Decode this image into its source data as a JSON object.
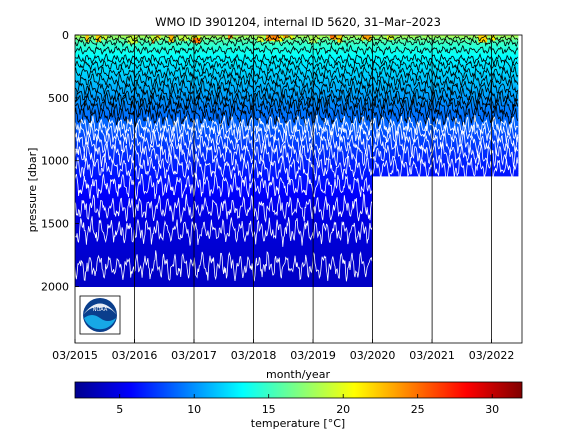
{
  "chart_data": {
    "type": "heatmap",
    "title": "WMO ID 3901204, internal ID 5620, 31–Mar–2023",
    "xlabel": "month/year",
    "ylabel": "pressure [dbar]",
    "x_ticks": [
      "03/2015",
      "03/2016",
      "03/2017",
      "03/2018",
      "03/2019",
      "03/2020",
      "03/2021",
      "03/2022"
    ],
    "x_tick_values": [
      2015.17,
      2016.17,
      2017.17,
      2018.17,
      2019.17,
      2020.17,
      2021.17,
      2022.17
    ],
    "xlim": [
      2015.17,
      2022.68
    ],
    "y_ticks": [
      0,
      500,
      1000,
      1500,
      2000
    ],
    "ylim": [
      0,
      2450
    ],
    "y_reversed": true,
    "profile_depth": [
      {
        "from": 2015.17,
        "to": 2020.17,
        "max_pressure": 2000
      },
      {
        "from": 2020.17,
        "to": 2022.62,
        "max_pressure": 1120
      }
    ],
    "temperature_isotherms": [
      {
        "temp": 17,
        "pressure": 25
      },
      {
        "temp": 15,
        "pressure": 60
      },
      {
        "temp": 14,
        "pressure": 120
      },
      {
        "temp": 13,
        "pressure": 190
      },
      {
        "temp": 12.5,
        "pressure": 240
      },
      {
        "temp": 12,
        "pressure": 300
      },
      {
        "temp": 11.5,
        "pressure": 360
      },
      {
        "temp": 11,
        "pressure": 420
      },
      {
        "temp": 10.5,
        "pressure": 480
      },
      {
        "temp": 10,
        "pressure": 530
      },
      {
        "temp": 9.5,
        "pressure": 580
      },
      {
        "temp": 9,
        "pressure": 650
      },
      {
        "temp": 8.5,
        "pressure": 720
      },
      {
        "temp": 8,
        "pressure": 780
      },
      {
        "temp": 7.5,
        "pressure": 860
      },
      {
        "temp": 7,
        "pressure": 950
      },
      {
        "temp": 6.5,
        "pressure": 1060
      },
      {
        "temp": 6,
        "pressure": 1200
      },
      {
        "temp": 5,
        "pressure": 1380
      },
      {
        "temp": 4.5,
        "pressure": 1560
      },
      {
        "temp": 4,
        "pressure": 1840
      }
    ],
    "colorbar": {
      "label": "temperature [°C]",
      "range": [
        2,
        32
      ],
      "ticks": [
        5,
        10,
        15,
        20,
        25,
        30
      ],
      "colormap": "jet"
    }
  },
  "logo": {
    "name": "noaa-logo",
    "text": "NOAA"
  }
}
